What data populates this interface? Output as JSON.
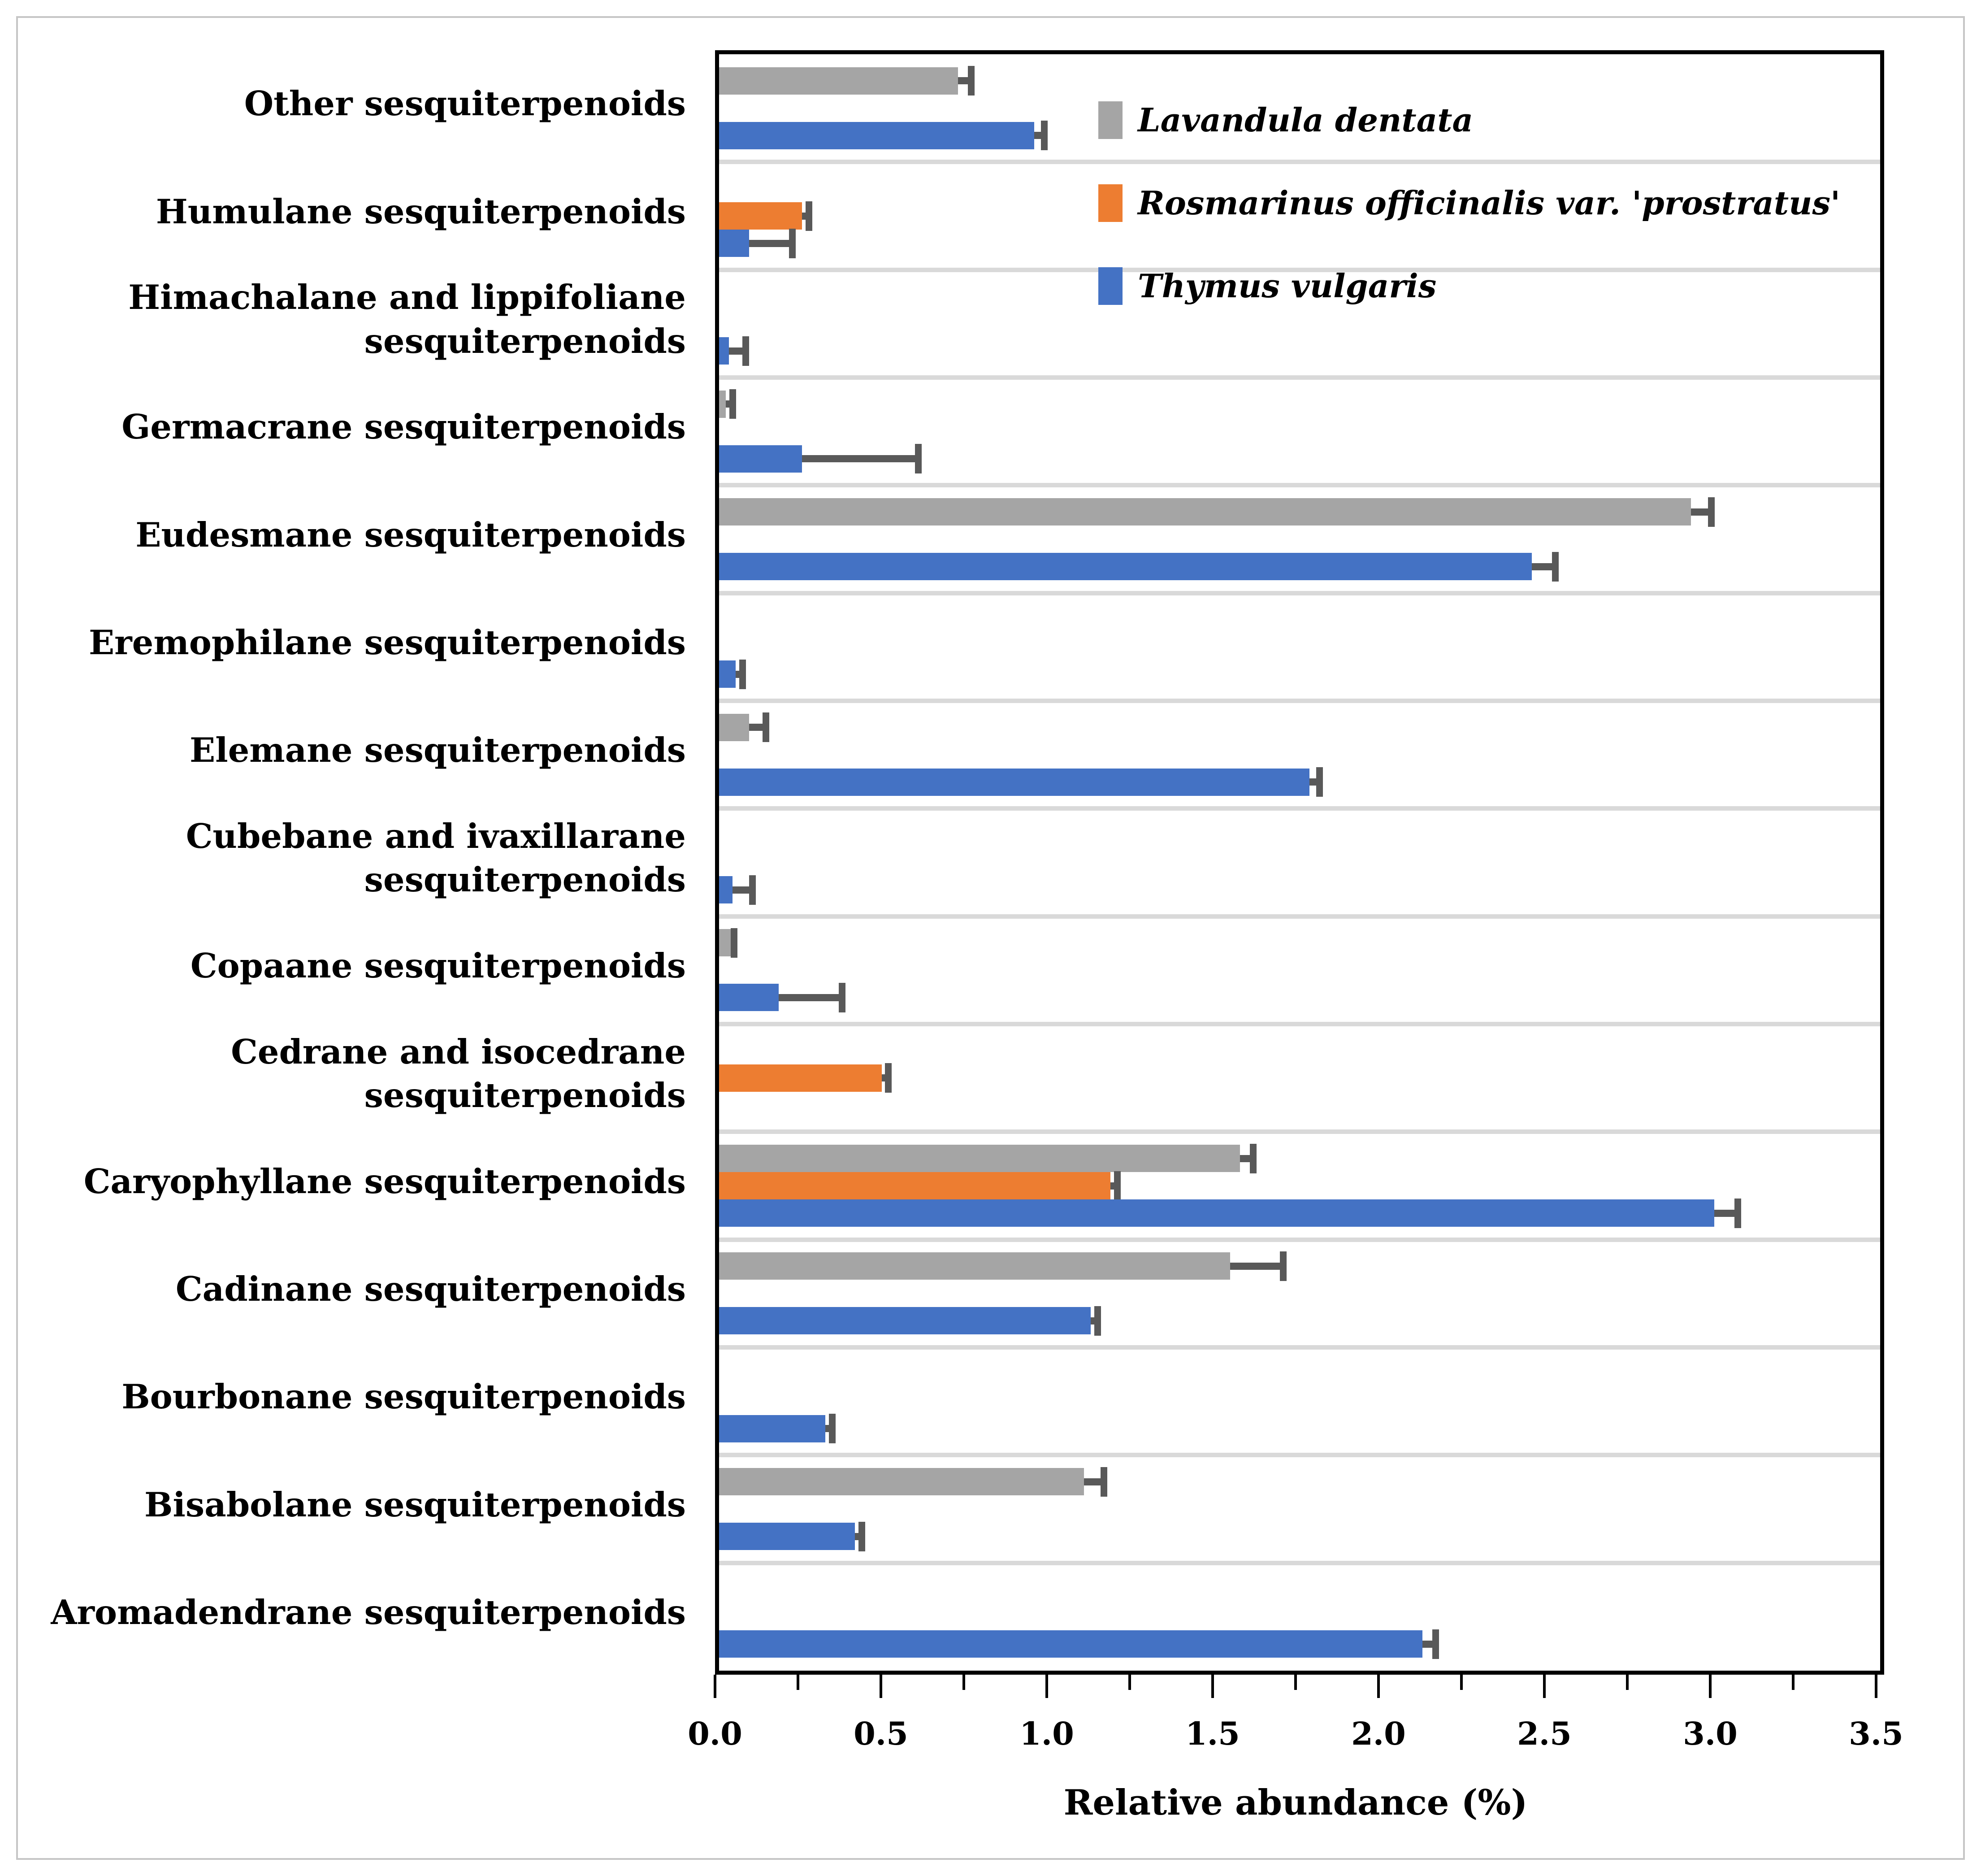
{
  "axis": {
    "xlabel": "Relative abundance (%)",
    "tick_labels": [
      "0.0",
      "0.5",
      "1.0",
      "1.5",
      "2.0",
      "2.5",
      "3.0",
      "3.5"
    ]
  },
  "legend": {
    "items": [
      {
        "label": "Lavandula dentata",
        "color": "#a5a5a5"
      },
      {
        "label": "Rosmarinus officinalis var. 'prostratus'",
        "color": "#ed7d31"
      },
      {
        "label": "Thymus vulgaris",
        "color": "#4472c4"
      }
    ]
  },
  "colors": {
    "gray_series": "#a5a5a5",
    "orange_series": "#ed7d31",
    "blue_series": "#4472c4",
    "error_bar": "#595959",
    "gridline": "#d9d9d9",
    "plot_border": "#000000"
  },
  "chart_data": {
    "type": "bar",
    "orientation": "horizontal",
    "title": "",
    "xlabel": "Relative abundance (%)",
    "ylabel": "",
    "xlim": [
      0,
      3.5
    ],
    "x_tick_step_major": 0.5,
    "x_tick_step_minor": 0.25,
    "grid": "category-separators",
    "legend_position": "inside-top-right",
    "categories": [
      "Other sesquiterpenoids",
      "Humulane sesquiterpenoids",
      "Himachalane and lippifoliane\nsesquiterpenoids",
      "Germacrane sesquiterpenoids",
      "Eudesmane sesquiterpenoids",
      "Eremophilane sesquiterpenoids",
      "Elemane sesquiterpenoids",
      "Cubebane and ivaxillarane\nsesquiterpenoids",
      "Copaane sesquiterpenoids",
      "Cedrane and isocedrane\nsesquiterpenoids",
      "Caryophyllane sesquiterpenoids",
      "Cadinane sesquiterpenoids",
      "Bourbonane sesquiterpenoids",
      "Bisabolane sesquiterpenoids",
      "Aromadendrane sesquiterpenoids"
    ],
    "series": [
      {
        "name": "Lavandula dentata",
        "color": "#a5a5a5",
        "values": [
          0.72,
          null,
          null,
          0.02,
          2.93,
          null,
          0.09,
          null,
          0.035,
          null,
          1.57,
          1.54,
          null,
          1.1,
          null
        ],
        "errors": [
          0.04,
          null,
          null,
          0.02,
          0.06,
          null,
          0.05,
          null,
          0.01,
          null,
          0.04,
          0.16,
          null,
          0.06,
          null
        ]
      },
      {
        "name": "Rosmarinus officinalis var. 'prostratus'",
        "color": "#ed7d31",
        "values": [
          null,
          0.25,
          null,
          null,
          null,
          null,
          null,
          null,
          null,
          0.49,
          1.18,
          null,
          null,
          null,
          null
        ],
        "errors": [
          null,
          0.02,
          null,
          null,
          null,
          null,
          null,
          null,
          null,
          0.02,
          0.02,
          null,
          null,
          null,
          null
        ]
      },
      {
        "name": "Thymus vulgaris",
        "color": "#4472c4",
        "values": [
          0.95,
          0.09,
          0.03,
          0.25,
          2.45,
          0.05,
          1.78,
          0.04,
          0.18,
          null,
          3.0,
          1.12,
          0.32,
          0.41,
          2.12
        ],
        "errors": [
          0.03,
          0.13,
          0.05,
          0.35,
          0.07,
          0.02,
          0.03,
          0.06,
          0.19,
          null,
          0.07,
          0.02,
          0.02,
          0.02,
          0.04
        ]
      }
    ]
  }
}
